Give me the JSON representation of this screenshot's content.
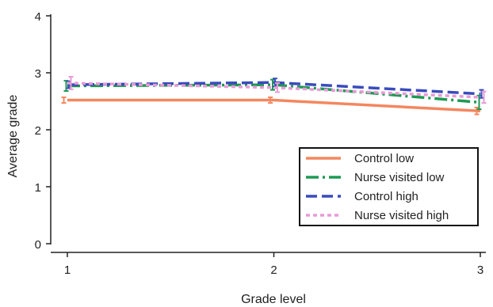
{
  "chart_data": {
    "type": "line",
    "title": "",
    "xlabel": "Grade  level",
    "ylabel": "Average grade",
    "x": [
      1,
      2,
      3
    ],
    "xticks": [
      "1",
      "2",
      "3"
    ],
    "yticks": [
      "0",
      "1",
      "2",
      "3",
      "4"
    ],
    "xlim": [
      0.8,
      3.1
    ],
    "ylim": [
      0,
      4
    ],
    "grid": false,
    "legend_position": "lower-right",
    "series": [
      {
        "name": "Control low",
        "values": [
          2.52,
          2.52,
          2.33
        ],
        "errors": [
          0.05,
          0.05,
          0.06
        ],
        "color": "#f4875f",
        "dash": "solid"
      },
      {
        "name": "Nurse visited low",
        "values": [
          2.77,
          2.79,
          2.48
        ],
        "errors": [
          0.09,
          0.09,
          0.12
        ],
        "color": "#1e9a53",
        "dash": "dashdot"
      },
      {
        "name": "Control high",
        "values": [
          2.79,
          2.83,
          2.63
        ],
        "errors": [
          0.06,
          0.07,
          0.07
        ],
        "color": "#3a4bbd",
        "dash": "dashed"
      },
      {
        "name": "Nurse visited high",
        "values": [
          2.82,
          2.74,
          2.57
        ],
        "errors": [
          0.11,
          0.08,
          0.1
        ],
        "color": "#e89ad6",
        "dash": "dotted"
      }
    ]
  }
}
